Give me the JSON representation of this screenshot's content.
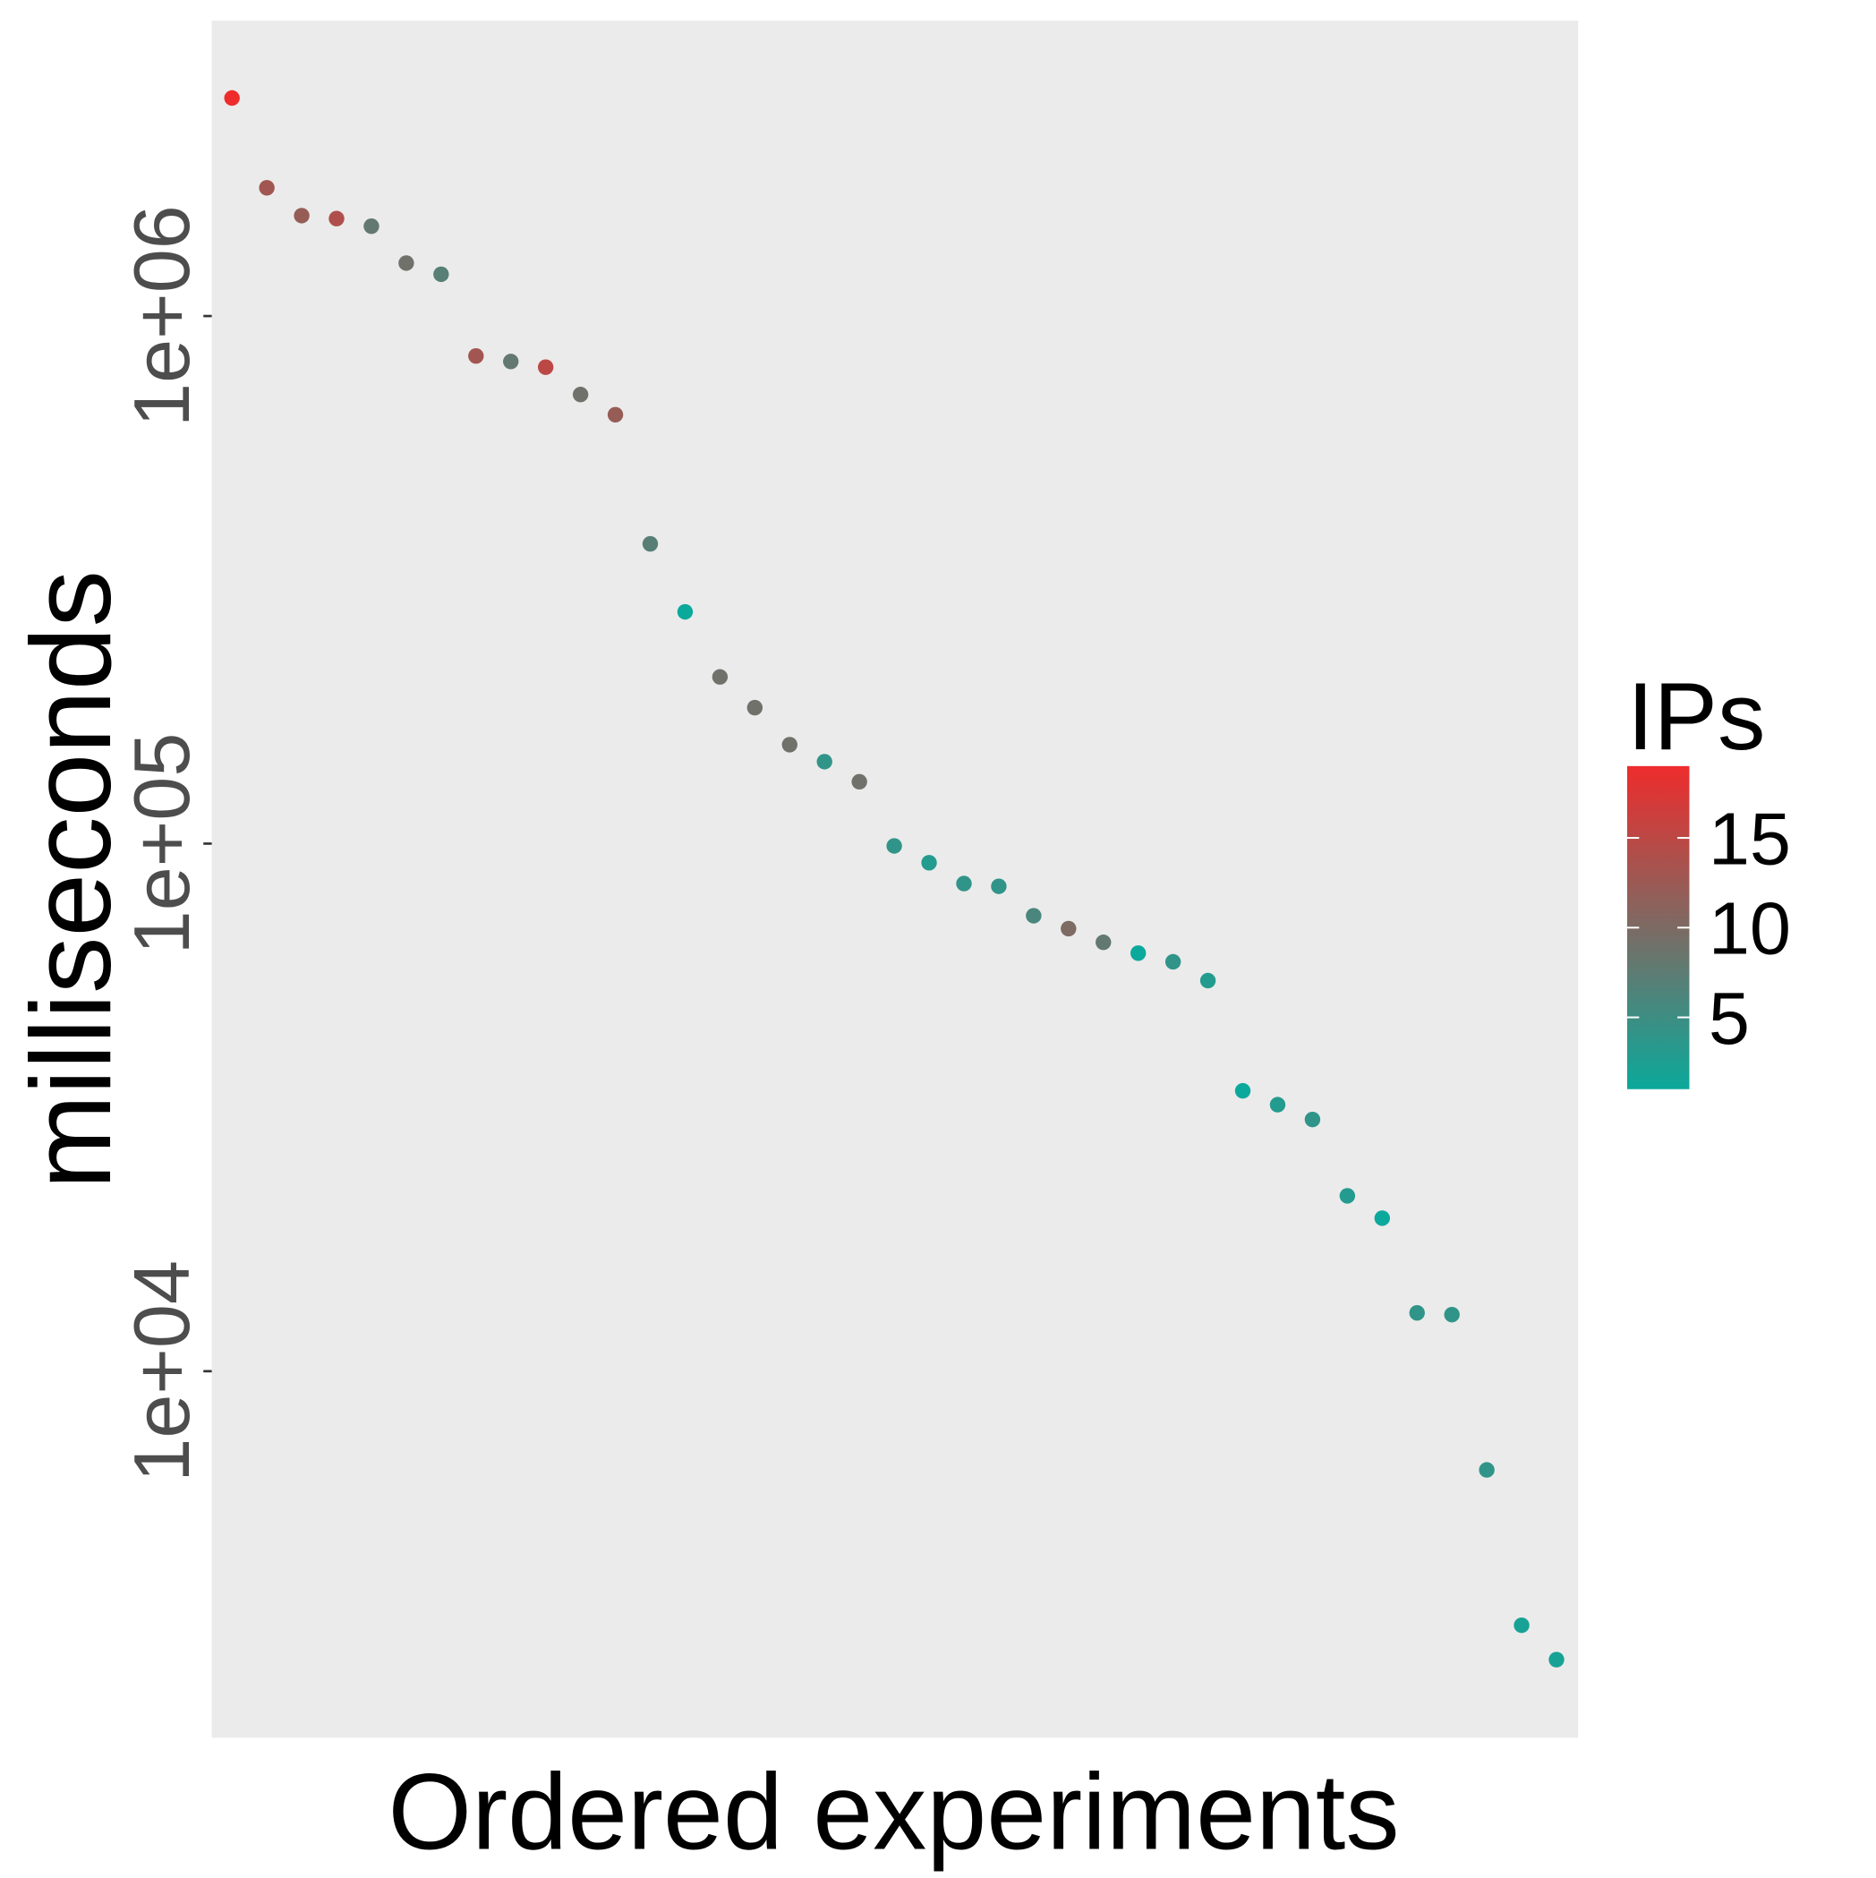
{
  "chart_data": {
    "type": "scatter",
    "xlabel": "Ordered experiments",
    "ylabel": "milliseconds",
    "x": [
      1,
      2,
      3,
      4,
      5,
      6,
      7,
      8,
      9,
      10,
      11,
      12,
      13,
      14,
      15,
      16,
      17,
      18,
      19,
      20,
      21,
      22,
      23,
      24,
      25,
      26,
      27,
      28,
      29,
      30,
      31,
      32,
      33,
      34,
      35,
      36,
      37,
      38,
      39
    ],
    "values": [
      2590000,
      1750000,
      1550000,
      1530000,
      1480000,
      1260000,
      1200000,
      840000,
      820000,
      800000,
      710000,
      650000,
      370000,
      275000,
      207000,
      181000,
      154000,
      143000,
      131000,
      99000,
      92000,
      84000,
      83000,
      73000,
      69000,
      65000,
      62000,
      59700,
      55000,
      34000,
      32000,
      30000,
      21500,
      19500,
      12900,
      12800,
      6500,
      3300,
      2840
    ],
    "color_values": [
      19,
      13,
      12,
      14,
      8,
      9,
      7,
      13,
      8,
      15,
      9,
      12,
      7,
      1,
      9,
      9,
      9,
      4,
      9,
      4,
      3,
      4,
      4,
      6,
      10,
      8,
      1,
      4,
      3,
      1,
      3,
      4,
      3,
      1,
      4,
      4,
      4,
      2,
      2
    ],
    "xlim": [
      0.42,
      39.62
    ],
    "ylim": [
      2020,
      3630000
    ],
    "log_y": true,
    "grid": false,
    "yticks": [
      {
        "value": 10000,
        "label": "1e+04"
      },
      {
        "value": 100000,
        "label": "1e+05"
      },
      {
        "value": 1000000,
        "label": "1e+06"
      }
    ],
    "colorbar": {
      "title": "IPs",
      "lim": [
        1,
        19
      ],
      "ticks": [
        5,
        10,
        15
      ],
      "low": "#0ba99b",
      "high": "#ee2c2c"
    }
  }
}
